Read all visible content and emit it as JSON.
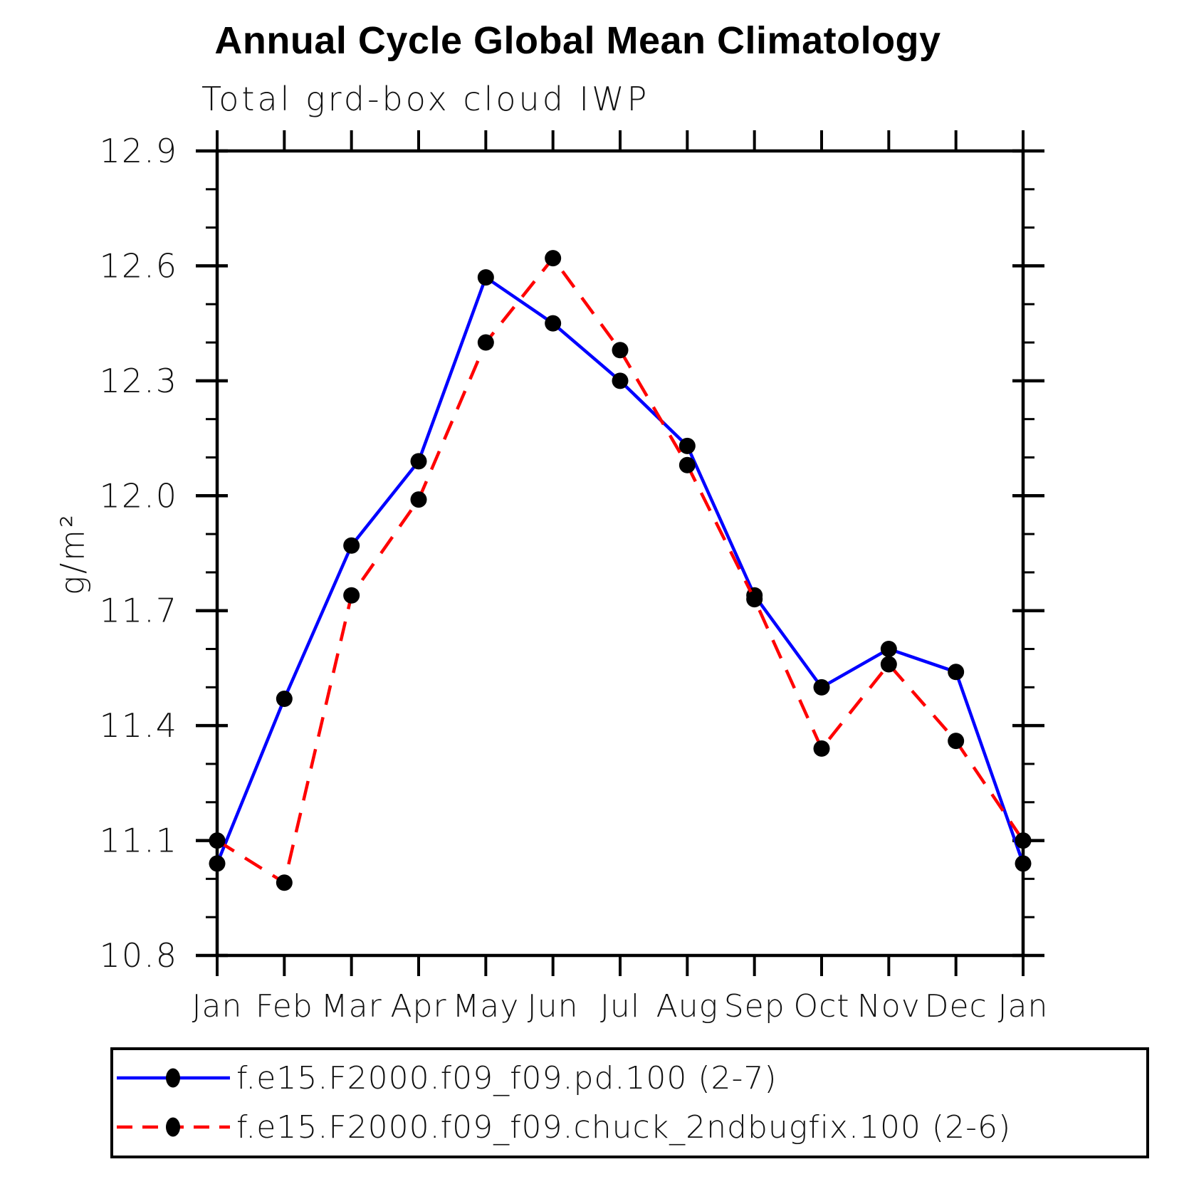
{
  "chart_data": {
    "type": "line",
    "title": "Annual Cycle Global Mean Climatology",
    "subtitle": "Total grd-box cloud IWP",
    "ylabel": "g/m²",
    "xlabel": "",
    "categories": [
      "Jan",
      "Feb",
      "Mar",
      "Apr",
      "May",
      "Jun",
      "Jul",
      "Aug",
      "Sep",
      "Oct",
      "Nov",
      "Dec",
      "Jan"
    ],
    "ylim": [
      10.8,
      12.9
    ],
    "y_major_step": 0.3,
    "y_minor_step": 0.1,
    "y_tick_labels": [
      "10.8",
      "11.1",
      "11.4",
      "11.7",
      "12.0",
      "12.3",
      "12.6",
      "12.9"
    ],
    "grid": false,
    "legend_position": "bottom",
    "frame_color": "#000000",
    "marker_shape": "filled-circle",
    "series": [
      {
        "name": "f.e15.F2000.f09_f09.pd.100 (2-7)",
        "color": "#0000ff",
        "line_style": "solid",
        "marker_color": "#000000",
        "values": [
          11.04,
          11.47,
          11.87,
          12.09,
          12.57,
          12.45,
          12.3,
          12.13,
          11.74,
          11.5,
          11.6,
          11.54,
          11.04
        ]
      },
      {
        "name": "f.e15.F2000.f09_f09.chuck_2ndbugfix.100 (2-6)",
        "color": "#ff0000",
        "line_style": "dashed",
        "marker_color": "#000000",
        "values": [
          11.1,
          10.99,
          11.74,
          11.99,
          12.4,
          12.62,
          12.38,
          12.08,
          11.73,
          11.34,
          11.56,
          11.36,
          11.1
        ]
      }
    ]
  }
}
